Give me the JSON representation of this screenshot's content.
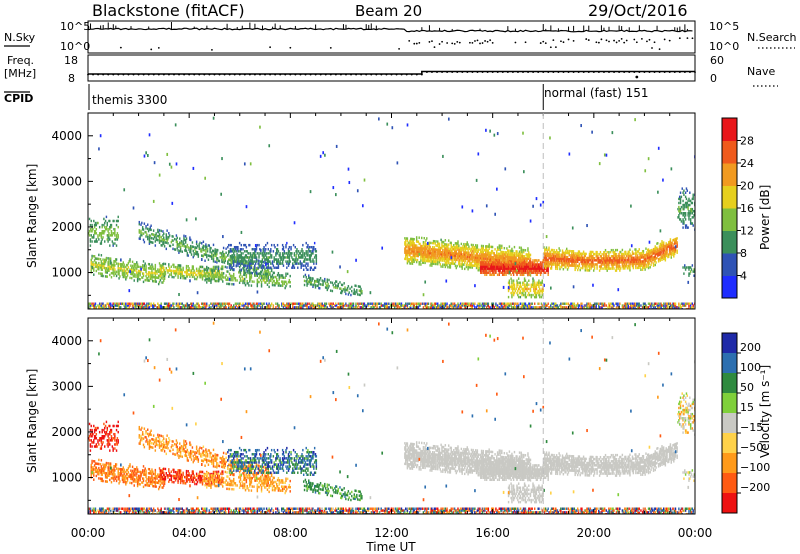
{
  "header": {
    "radar": "Blackstone (fitACF)",
    "beam": "Beam 20",
    "date": "29/Oct/2016"
  },
  "status_panels": {
    "nsky_label": "N.Sky",
    "nsky_ticks": [
      "10^5",
      "10^0"
    ],
    "nsearch_label": "N.Search",
    "nsearch_ticks": [
      "10^5",
      "10^0"
    ],
    "freq_label_1": "Freq.",
    "freq_label_2": "[MHz]",
    "freq_ticks": [
      "18",
      "8"
    ],
    "nave_label": "Nave",
    "nave_ticks": [
      "60",
      "0"
    ],
    "cpid_label": "CPID",
    "cpid_segments": [
      {
        "label": "themis 3300",
        "start_hour": 0
      },
      {
        "label": "normal (fast) 151",
        "start_hour": 18
      }
    ]
  },
  "chart_data": [
    {
      "type": "heatmap",
      "name": "power",
      "ylabel": "Slant Range [km]",
      "xlabel": "",
      "x_ticks": [
        "00:00",
        "04:00",
        "08:00",
        "12:00",
        "16:00",
        "20:00",
        "00:00"
      ],
      "xlim_hours": [
        0,
        24
      ],
      "ylim": [
        200,
        4500
      ],
      "y_ticks": [
        1000,
        2000,
        3000,
        4000
      ],
      "colorbar": {
        "label": "Power [dB]",
        "ticks": [
          "4",
          "8",
          "12",
          "16",
          "20",
          "24",
          "28"
        ],
        "range": [
          0,
          30
        ],
        "colors": [
          "#1f2dff",
          "#2f53b5",
          "#3b8f5b",
          "#7fbf3f",
          "#e6cf1e",
          "#f19a20",
          "#ef5a1c",
          "#e8161a"
        ]
      },
      "mode_change_hour": 18
    },
    {
      "type": "heatmap",
      "name": "velocity",
      "ylabel": "Slant Range [km]",
      "xlabel": "Time UT",
      "x_ticks": [
        "00:00",
        "04:00",
        "08:00",
        "12:00",
        "16:00",
        "20:00",
        "00:00"
      ],
      "xlim_hours": [
        0,
        24
      ],
      "ylim": [
        200,
        4500
      ],
      "y_ticks": [
        1000,
        2000,
        3000,
        4000
      ],
      "colorbar": {
        "label": "Velocity [m s⁻¹]",
        "ticks": [
          "200",
          "100",
          "50",
          "15",
          "−15",
          "−50",
          "−100",
          "−200"
        ],
        "colors": [
          "#1f2aa8",
          "#2c6fb0",
          "#2f8a3f",
          "#7fcf3a",
          "#c9c9c4",
          "#ffd24a",
          "#ff9a1a",
          "#ff5a12",
          "#ee1111"
        ]
      },
      "mode_change_hour": 18
    }
  ]
}
